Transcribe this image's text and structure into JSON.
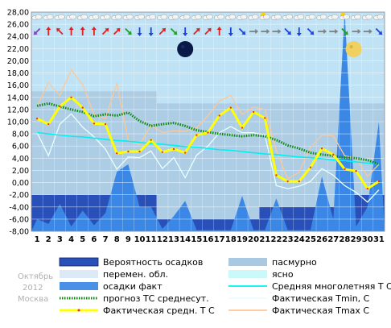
{
  "meta": {
    "month": "Октябрь",
    "year": "2012",
    "city": "Москва"
  },
  "colors": {
    "plot_bg": "#bfe2f4",
    "forecast_band": "#a9c9e2",
    "precip_prob": "#2850b8",
    "precip_fact": "#3a87e6",
    "norm": "#00f0f0",
    "forecast_mean": "#0a8a0a",
    "tmean": "#ffff00",
    "tmin": "#eaffff",
    "tmax": "#ffc796"
  },
  "chart_data": {
    "type": "line",
    "x": [
      1,
      2,
      3,
      4,
      5,
      6,
      7,
      8,
      9,
      10,
      11,
      12,
      13,
      14,
      15,
      16,
      17,
      18,
      19,
      20,
      21,
      22,
      23,
      24,
      25,
      26,
      27,
      28,
      29,
      30,
      31
    ],
    "ylim": [
      -8,
      28
    ],
    "yticks": [
      "-8,00",
      "-6,00",
      "-4,00",
      "-2,00",
      "0,00",
      "2,00",
      "4,00",
      "6,00",
      "8,00",
      "10,00",
      "12,00",
      "14,00",
      "16,00",
      "18,00",
      "20,00",
      "22,00",
      "24,00",
      "26,00",
      "28,00"
    ],
    "grid": true,
    "series": [
      {
        "name": "Фактическая средн. Т С",
        "key": "tmean",
        "values": [
          10.5,
          9.6,
          12.5,
          14.0,
          12.3,
          9.7,
          9.6,
          4.8,
          5.1,
          5.1,
          7.0,
          5.0,
          5.5,
          4.9,
          7.8,
          8.2,
          11.0,
          12.3,
          9.0,
          11.6,
          10.6,
          1.2,
          0.2,
          0.2,
          2.5,
          5.6,
          4.6,
          2.2,
          1.9,
          -1.0,
          0.2
        ]
      },
      {
        "name": "Фактическая Tmin, C",
        "key": "tmin",
        "values": [
          8.2,
          4.4,
          9.6,
          11.3,
          9.1,
          7.5,
          5.5,
          2.2,
          4.2,
          4.1,
          5.2,
          2.3,
          4.1,
          0.8,
          4.5,
          6.0,
          8.2,
          9.2,
          8.2,
          8.2,
          7.8,
          -0.5,
          -1.0,
          -0.6,
          0.2,
          2.3,
          1.2,
          -0.5,
          -1.6,
          -3.2,
          -1.2
        ]
      },
      {
        "name": "Фактическая Tmax С",
        "key": "tmax",
        "values": [
          12.5,
          16.4,
          14.3,
          18.5,
          16.1,
          11.2,
          10.5,
          16.3,
          7.0,
          6.2,
          9.4,
          8.2,
          8.5,
          8.4,
          9.0,
          11.0,
          13.4,
          14.3,
          11.2,
          12.4,
          12.0,
          5.3,
          0.6,
          1.7,
          5.8,
          7.8,
          7.7,
          4.4,
          4.0,
          1.0,
          3.0
        ]
      },
      {
        "name": "прогноз ТС среднесут.",
        "key": "forecast",
        "values": [
          12.6,
          13.0,
          12.5,
          12.0,
          11.6,
          10.9,
          11.2,
          11.0,
          11.5,
          10.1,
          9.3,
          9.6,
          9.8,
          9.3,
          8.6,
          8.3,
          8.0,
          7.8,
          7.6,
          7.8,
          7.6,
          7.0,
          6.1,
          5.6,
          4.9,
          4.6,
          4.4,
          4.1,
          4.0,
          3.7,
          3.0
        ]
      },
      {
        "name": "Средняя многолетняя Т С",
        "key": "norm",
        "values": [
          8.2,
          8.0,
          7.8,
          7.6,
          7.5,
          7.3,
          7.1,
          6.9,
          6.8,
          6.6,
          6.4,
          6.3,
          6.1,
          5.9,
          5.8,
          5.6,
          5.4,
          5.3,
          5.1,
          4.9,
          4.7,
          4.6,
          4.4,
          4.2,
          4.1,
          3.9,
          3.7,
          3.6,
          3.4,
          3.2,
          3.0
        ]
      },
      {
        "name": "осадки факт",
        "key": "precip_fact",
        "values": [
          -6.0,
          -6.8,
          -3.5,
          -7.2,
          -4.6,
          -7.0,
          -5.0,
          1.8,
          3.0,
          -4.0,
          -4.0,
          -7.6,
          -5.5,
          -3.0,
          -7.8,
          -7.8,
          -7.8,
          -7.8,
          -2.2,
          -7.8,
          -7.8,
          -2.6,
          -7.8,
          -7.8,
          -7.8,
          1.0,
          -6.0,
          30.0,
          -7.2,
          -4.0,
          10.0
        ]
      },
      {
        "name": "Вероятность осадков",
        "key": "precip_prob",
        "values": [
          -2,
          -2,
          -2,
          -2,
          -2,
          -2,
          -2,
          -2,
          -2,
          -2,
          -2,
          -6,
          -6,
          -6,
          -6,
          -6,
          -6,
          -6,
          -6,
          -6,
          -4,
          -4,
          -4,
          -4,
          -4,
          -4,
          -4,
          -2,
          -2,
          -2,
          -2
        ]
      },
      {
        "name": "пасмурно",
        "key": "overcast",
        "values": [
          15,
          15,
          15,
          15,
          15,
          15,
          15,
          15,
          15,
          15,
          15,
          13,
          13,
          13,
          13,
          13,
          13,
          13,
          13,
          13,
          13,
          13,
          13,
          13,
          13,
          13,
          13,
          13,
          13,
          13,
          13
        ]
      }
    ]
  },
  "legend": [
    {
      "label": "Вероятность осадков",
      "swatch": "box",
      "color": "#2850b8"
    },
    {
      "label": "пасмурно",
      "swatch": "box",
      "color": "#a9c9e2"
    },
    {
      "label": "перемен. обл.",
      "swatch": "box",
      "color": "#dbeaf6"
    },
    {
      "label": "ясно",
      "swatch": "box",
      "color": "#c9f9f9"
    },
    {
      "label": "осадки факт",
      "swatch": "box",
      "color": "#4a90e6"
    },
    {
      "label": "Средняя многолетняя Т С",
      "swatch": "line",
      "color": "#00f0f0"
    },
    {
      "label": "прогноз ТС среднесут.",
      "swatch": "dotted",
      "color": "#0a8a0a"
    },
    {
      "label": "Фактическая Tmin, C",
      "swatch": "line",
      "color": "#eaffff"
    },
    {
      "label": "Фактическая средн. Т С",
      "swatch": "yellow",
      "color": "#ffff00"
    },
    {
      "label": "Фактическая Tmax С",
      "swatch": "line",
      "color": "#ffc796"
    }
  ],
  "icons": {
    "row1": [
      "cloud-icon",
      "cloud-icon",
      "cloud-icon",
      "cloud-icon",
      "cloud-icon",
      "cloud-icon",
      "cloud-icon",
      "cloud-icon",
      "cloud-icon",
      "cloud-icon",
      "cloud-icon",
      "cloud-icon",
      "cloud-icon",
      "cloud-icon",
      "cloud-icon",
      "cloud-icon",
      "cloud-icon",
      "cloud-icon",
      "cloud-icon",
      "cloud-icon",
      "sun-cloud-icon",
      "cloud-icon",
      "cloud-icon",
      "cloud-icon",
      "cloud-icon",
      "cloud-icon",
      "cloud-icon",
      "sun-cloud-icon",
      "cloud-icon",
      "cloud-icon",
      "cloud-icon"
    ],
    "arrows": [
      {
        "angle": 225,
        "color": "#8040c0"
      },
      {
        "angle": 0,
        "color": "#e02020"
      },
      {
        "angle": 315,
        "color": "#e02020"
      },
      {
        "angle": 0,
        "color": "#e02020"
      },
      {
        "angle": 0,
        "color": "#e02020"
      },
      {
        "angle": 0,
        "color": "#e02020"
      },
      {
        "angle": 45,
        "color": "#e02020"
      },
      {
        "angle": 45,
        "color": "#e02020"
      },
      {
        "angle": 135,
        "color": "#20a020"
      },
      {
        "angle": 180,
        "color": "#2040e0"
      },
      {
        "angle": 180,
        "color": "#2040e0"
      },
      {
        "angle": 45,
        "color": "#e02020"
      },
      {
        "angle": 135,
        "color": "#20a020"
      },
      {
        "angle": 180,
        "color": "#2040e0"
      },
      {
        "angle": 45,
        "color": "#e02020"
      },
      {
        "angle": 45,
        "color": "#e02020"
      },
      {
        "angle": 0,
        "color": "#e02020"
      },
      {
        "angle": 180,
        "color": "#2040e0"
      },
      {
        "angle": 135,
        "color": "#2040e0"
      },
      {
        "angle": 90,
        "color": "#808080"
      },
      {
        "angle": 90,
        "color": "#808080"
      },
      {
        "angle": 90,
        "color": "#808080"
      },
      {
        "angle": 135,
        "color": "#2040e0"
      },
      {
        "angle": 180,
        "color": "#2040e0"
      },
      {
        "angle": 135,
        "color": "#2040e0"
      },
      {
        "angle": 90,
        "color": "#808080"
      },
      {
        "angle": 90,
        "color": "#808080"
      },
      {
        "angle": 135,
        "color": "#20a020"
      },
      {
        "angle": 90,
        "color": "#808080"
      },
      {
        "angle": 90,
        "color": "#808080"
      },
      {
        "angle": 135,
        "color": "#2040e0"
      }
    ],
    "moon_day": 14,
    "full_moon_day": 29
  }
}
